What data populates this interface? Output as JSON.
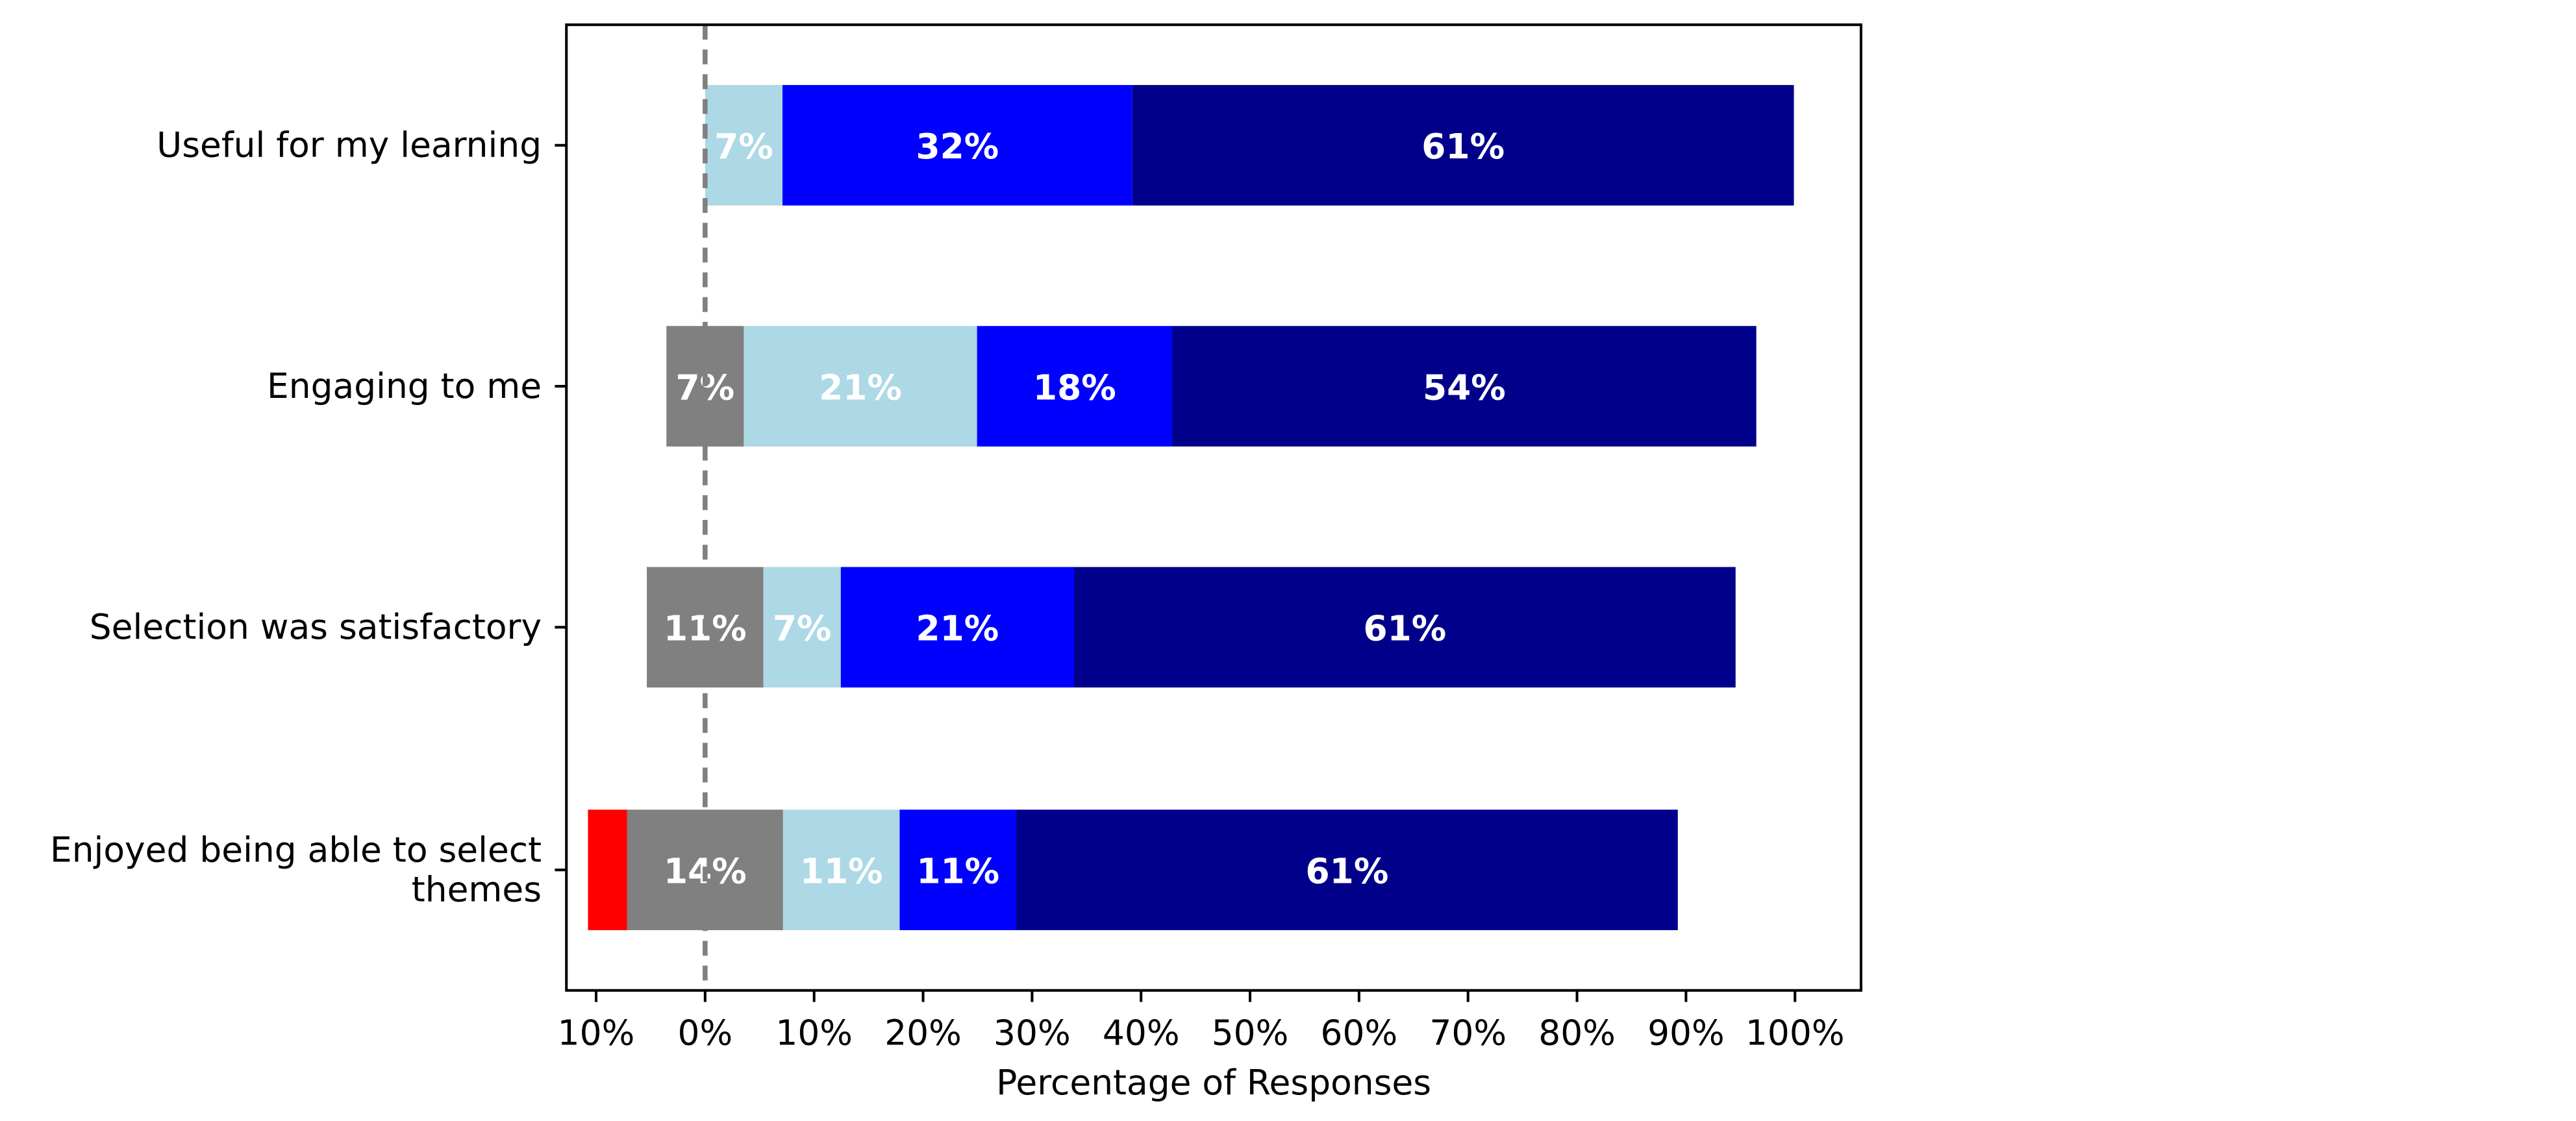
{
  "chart_data": {
    "type": "bar",
    "orientation": "horizontal",
    "stacked": "diverging",
    "categories": [
      "Useful for my learning",
      "Engaging to me",
      "Selection was satisfactory",
      [
        "Enjoyed being able to select",
        "themes"
      ]
    ],
    "neutral_category_split": "half of the grey segment sits left of 0%",
    "series": [
      {
        "color": "#ff0000",
        "values": [
          0,
          0,
          0,
          3.6
        ],
        "labels": [
          "",
          "",
          "",
          ""
        ],
        "side": "negative"
      },
      {
        "color": "#808080",
        "values": [
          0,
          7.1,
          10.7,
          14.3
        ],
        "labels": [
          "",
          "7%",
          "11%",
          "14%"
        ],
        "side": "neutral",
        "label_color": "#ffffff"
      },
      {
        "color": "#add8e6",
        "values": [
          7.1,
          21.4,
          7.1,
          10.7
        ],
        "labels": [
          "7%",
          "21%",
          "7%",
          "11%"
        ],
        "side": "positive",
        "label_color": "#ffffff"
      },
      {
        "color": "#0000ff",
        "values": [
          32.1,
          17.9,
          21.4,
          10.7
        ],
        "labels": [
          "32%",
          "18%",
          "21%",
          "11%"
        ],
        "side": "positive",
        "label_color": "#ffffff"
      },
      {
        "color": "#00008b",
        "values": [
          60.7,
          53.6,
          60.7,
          60.7
        ],
        "labels": [
          "61%",
          "54%",
          "61%",
          "61%"
        ],
        "side": "positive",
        "label_color": "#ffffff"
      }
    ],
    "xlim": [
      -12.8,
      106
    ],
    "xticks": [
      -10,
      0,
      10,
      20,
      30,
      40,
      50,
      60,
      70,
      80,
      90,
      100
    ],
    "xtick_labels": [
      "10%",
      "0%",
      "10%",
      "20%",
      "30%",
      "40%",
      "50%",
      "60%",
      "70%",
      "80%",
      "90%",
      "100%"
    ],
    "xlabel": "Percentage of Responses",
    "ylabel": "",
    "title": "",
    "reference_line": {
      "x": 0,
      "style": "dashed",
      "color": "#808080"
    },
    "grid": false,
    "legend": "none"
  }
}
